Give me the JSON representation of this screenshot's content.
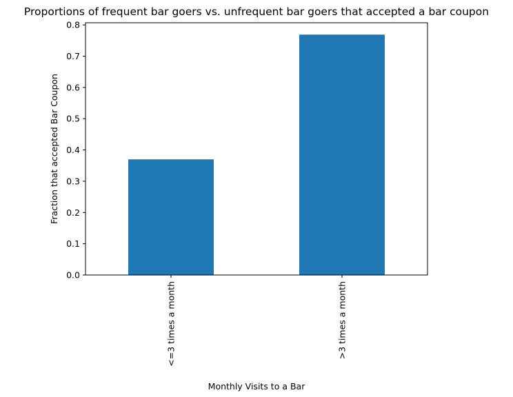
{
  "chart_data": {
    "type": "bar",
    "title": "Proportions of frequent bar goers vs. unfrequent bar goers that accepted a bar coupon",
    "xlabel": "Monthly Visits to a Bar",
    "ylabel": "Fraction that accepted Bar Coupon",
    "categories": [
      "<=3 times a month",
      ">3 times a month"
    ],
    "values": [
      0.37,
      0.769
    ],
    "ylim": [
      0,
      0.807
    ],
    "yticks": [
      0.0,
      0.1,
      0.2,
      0.3,
      0.4,
      0.5,
      0.6,
      0.7,
      0.8
    ],
    "ytick_labels": [
      "0.0",
      "0.1",
      "0.2",
      "0.3",
      "0.4",
      "0.5",
      "0.6",
      "0.7",
      "0.8"
    ],
    "bar_color": "#1f77b4",
    "grid": false,
    "legend": "none"
  }
}
